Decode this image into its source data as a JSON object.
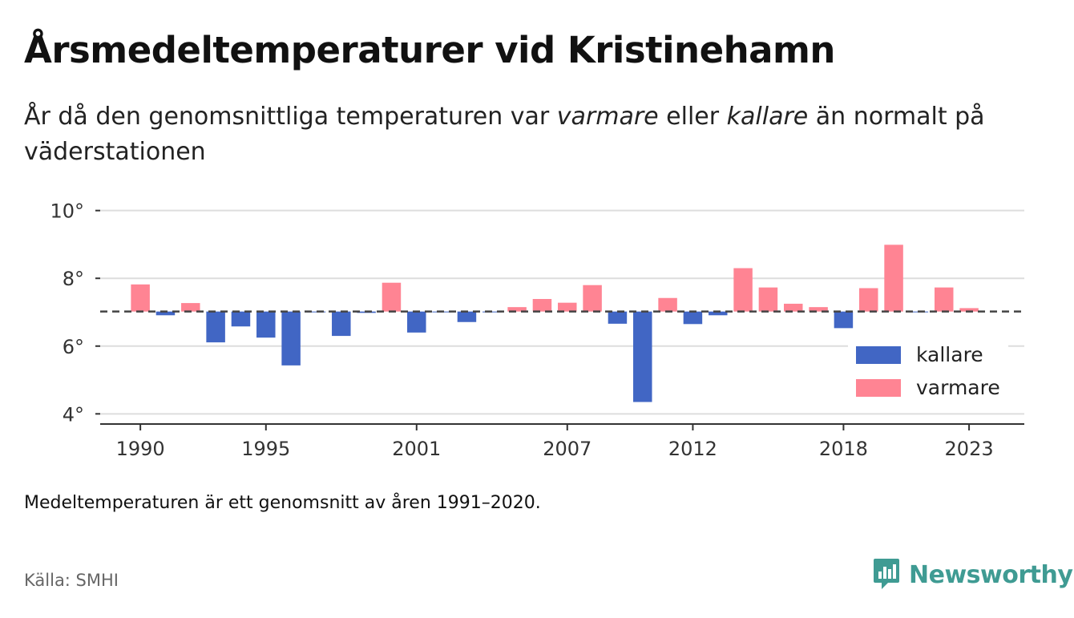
{
  "header": {
    "title": "Årsmedeltemperaturer vid Kristinehamn",
    "subtitle_part1": "År då den genomsnittliga temperaturen var ",
    "subtitle_warm": "varmare",
    "subtitle_part2": " eller ",
    "subtitle_cold": "kallare",
    "subtitle_part3": " än normalt på väderstationen"
  },
  "footer": {
    "note": "Medeltemperaturen är ett genomsnitt av åren 1991–2020.",
    "source": "Källa: SMHI",
    "brand": "Newsworthy",
    "brand_icon": "newsworthy-logo-icon",
    "brand_color": "#3f9b93"
  },
  "colors": {
    "warmer": "#ff8493",
    "colder": "#4166c4",
    "grid": "#dddddd",
    "axis": "#333333",
    "baseline": "#444444"
  },
  "chart_data": {
    "type": "bar",
    "baseline": 7.02,
    "ylim": [
      3.7,
      10.3
    ],
    "yticks": [
      4,
      6,
      8,
      10
    ],
    "ytick_labels": [
      "4°",
      "6°",
      "8°",
      "10°"
    ],
    "xticks": [
      1990,
      1995,
      2001,
      2007,
      2012,
      2018,
      2023
    ],
    "xtick_labels": [
      "1990",
      "1995",
      "2001",
      "2007",
      "2012",
      "2018",
      "2023"
    ],
    "xlim": [
      1988.4,
      2025.2
    ],
    "grid": true,
    "legend_position": "right",
    "legend": [
      {
        "label": "kallare",
        "color": "#4166c4"
      },
      {
        "label": "varmare",
        "color": "#ff8493"
      }
    ],
    "years": [
      1990,
      1991,
      1992,
      1993,
      1994,
      1995,
      1996,
      1997,
      1998,
      1999,
      2000,
      2001,
      2002,
      2003,
      2004,
      2005,
      2006,
      2007,
      2008,
      2009,
      2010,
      2011,
      2012,
      2013,
      2014,
      2015,
      2016,
      2017,
      2018,
      2019,
      2020,
      2021,
      2022,
      2023
    ],
    "values": [
      7.82,
      6.91,
      7.27,
      6.11,
      6.58,
      6.25,
      5.43,
      7.0,
      6.3,
      6.98,
      7.87,
      6.4,
      7.0,
      6.71,
      7.0,
      7.15,
      7.39,
      7.28,
      7.8,
      6.66,
      4.35,
      7.42,
      6.65,
      6.91,
      8.3,
      7.73,
      7.25,
      7.15,
      6.53,
      7.71,
      8.99,
      7.0,
      7.73,
      7.12
    ]
  }
}
